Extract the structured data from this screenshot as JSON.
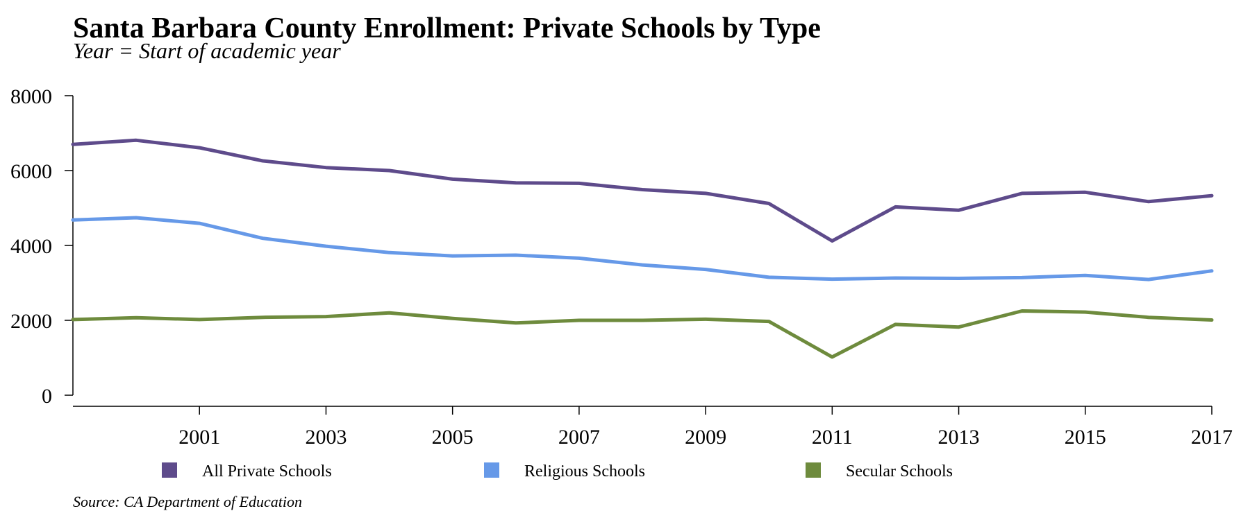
{
  "chart_data": {
    "type": "line",
    "title": "Santa Barbara County Enrollment: Private Schools by Type",
    "subtitle": "Year = Start of academic year",
    "source": "Source: CA Department of Education",
    "x": [
      1999,
      2000,
      2001,
      2002,
      2003,
      2004,
      2005,
      2006,
      2007,
      2008,
      2009,
      2010,
      2011,
      2012,
      2013,
      2014,
      2015,
      2016,
      2017
    ],
    "x_ticks": [
      2001,
      2003,
      2005,
      2007,
      2009,
      2011,
      2013,
      2015,
      2017
    ],
    "y_ticks": [
      0,
      2000,
      4000,
      6000,
      8000
    ],
    "xlim": [
      1999,
      2017
    ],
    "ylim": [
      0,
      8000
    ],
    "grid": false,
    "legend_position": "bottom",
    "series": [
      {
        "name": "All Private Schools",
        "color": "#5e4b8b",
        "values": [
          6700,
          6810,
          6610,
          6260,
          6080,
          6000,
          5770,
          5670,
          5660,
          5490,
          5390,
          5120,
          4120,
          5030,
          4940,
          5390,
          5420,
          5170,
          5330
        ]
      },
      {
        "name": "Religious Schools",
        "color": "#6699e8",
        "values": [
          4680,
          4740,
          4590,
          4190,
          3980,
          3810,
          3720,
          3740,
          3660,
          3480,
          3360,
          3150,
          3100,
          3130,
          3120,
          3140,
          3200,
          3090,
          3320
        ]
      },
      {
        "name": "Secular Schools",
        "color": "#6e8b3d",
        "values": [
          2020,
          2070,
          2020,
          2080,
          2100,
          2200,
          2050,
          1930,
          2000,
          2000,
          2030,
          1970,
          1020,
          1890,
          1820,
          2250,
          2220,
          2080,
          2010
        ]
      }
    ]
  }
}
